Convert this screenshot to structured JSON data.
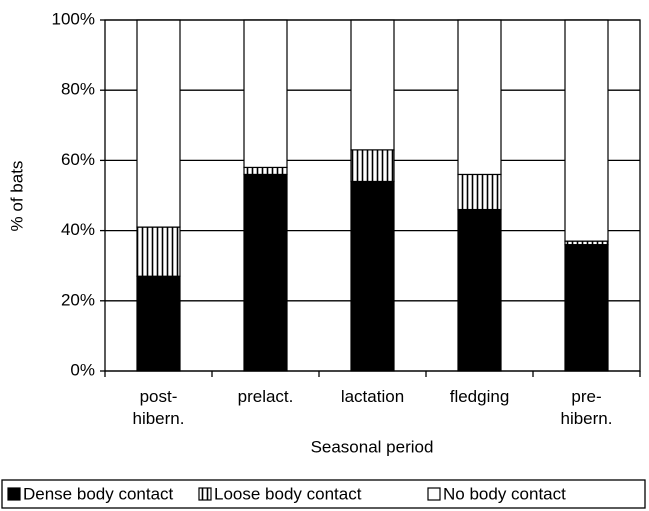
{
  "chart_data": {
    "type": "stacked_bar",
    "categories": [
      "post-\nhibern.",
      "prelact.",
      "lactation",
      "fledging",
      "pre-\nhibern."
    ],
    "series": [
      {
        "name": "Dense body contact",
        "color": "#000000",
        "values": [
          27,
          56,
          54,
          46,
          36
        ]
      },
      {
        "name": "Loose body contact",
        "color": "#000000",
        "hatch": "vertical",
        "values": [
          14,
          2,
          9,
          10,
          1
        ]
      },
      {
        "name": "No body contact",
        "color": "#ffffff",
        "values": [
          59,
          42,
          37,
          44,
          63
        ]
      }
    ],
    "x_label": "Seasonal period",
    "y_label": "% of bats",
    "ylim": [
      0,
      100
    ],
    "yticks": [
      {
        "value": 0,
        "label": "0%"
      },
      {
        "value": 20,
        "label": "20%"
      },
      {
        "value": 40,
        "label": "40%"
      },
      {
        "value": 60,
        "label": "60%"
      },
      {
        "value": 80,
        "label": "80%"
      },
      {
        "value": 100,
        "label": "100%"
      }
    ],
    "grid": true,
    "legend": "bottom"
  }
}
